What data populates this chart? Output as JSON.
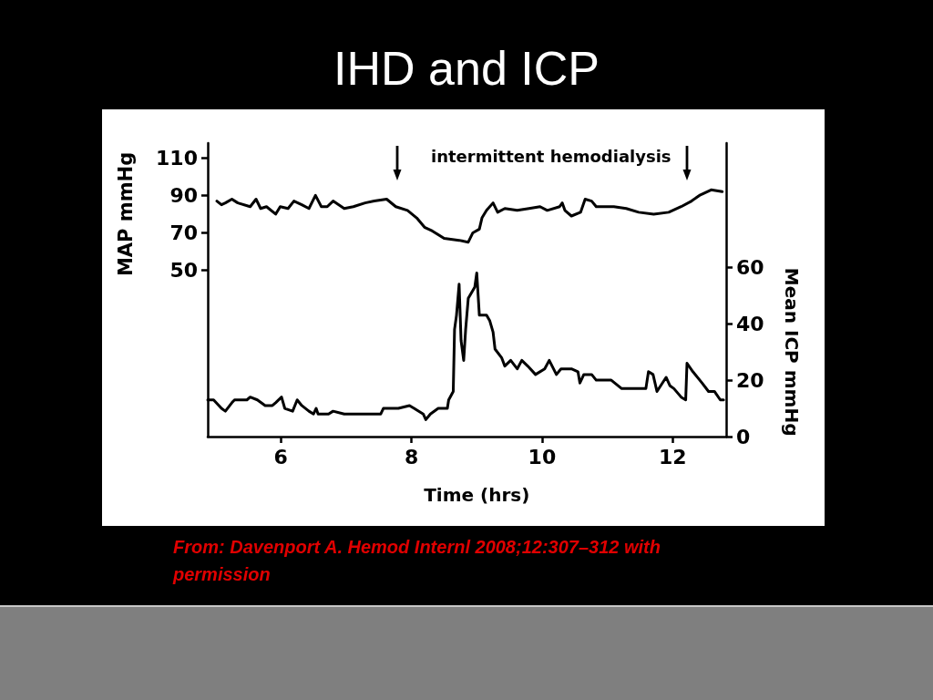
{
  "chart_data": {
    "type": "line",
    "title": "IHD and ICP",
    "xlabel": "Time (hrs)",
    "ylabel": "MAP mmHg",
    "y2label": "Mean ICP mmHg",
    "xlim": [
      4.88,
      12.82
    ],
    "xticks": [
      6,
      8,
      10,
      12
    ],
    "ylim": [
      -39,
      118
    ],
    "yticks": [
      50,
      70,
      90,
      110
    ],
    "y2lim": [
      0,
      104
    ],
    "y2ticks": [
      0,
      20,
      40,
      60
    ],
    "series": [
      {
        "color": "#000000",
        "x": [
          5.02,
          5.09,
          5.15,
          5.25,
          5.34,
          5.53,
          5.62,
          5.69,
          5.78,
          5.92,
          5.99,
          6.11,
          6.2,
          6.32,
          6.43,
          6.53,
          6.62,
          6.71,
          6.8,
          6.97,
          7.11,
          7.29,
          7.43,
          7.62,
          7.76,
          7.94,
          8.08,
          8.2,
          8.32,
          8.5,
          8.73,
          8.87,
          8.94,
          9.04,
          9.08,
          9.15,
          9.25,
          9.32,
          9.43,
          9.62,
          9.8,
          9.97,
          10.08,
          10.27,
          10.31,
          10.35,
          10.45,
          10.59,
          10.66,
          10.76,
          10.83,
          10.97,
          11.1,
          11.29,
          11.48,
          11.71,
          11.94,
          12.13,
          12.29,
          12.41,
          12.59,
          12.76
        ],
        "values": [
          87,
          85,
          86,
          88,
          86,
          84,
          88,
          83,
          84,
          80,
          84,
          83,
          87,
          85,
          83,
          90,
          84,
          84,
          87,
          83,
          84,
          86,
          87,
          88,
          84,
          82,
          78,
          73,
          71,
          67,
          66,
          65,
          70,
          72,
          78,
          82,
          86,
          81,
          83,
          82,
          83,
          84,
          82,
          84,
          86,
          82,
          79,
          81,
          88,
          87,
          84,
          84,
          84,
          83,
          81,
          80,
          81,
          84,
          87,
          90,
          93,
          92
        ]
      },
      {
        "color": "#000000",
        "axis": "y2",
        "x": [
          4.88,
          4.97,
          5.09,
          5.15,
          5.25,
          5.29,
          5.48,
          5.53,
          5.64,
          5.76,
          5.87,
          5.92,
          6.01,
          6.06,
          6.18,
          6.25,
          6.32,
          6.43,
          6.5,
          6.54,
          6.57,
          6.73,
          6.8,
          6.97,
          7.2,
          7.53,
          7.57,
          7.8,
          7.97,
          8.04,
          8.18,
          8.22,
          8.29,
          8.41,
          8.55,
          8.57,
          8.64,
          8.66,
          8.69,
          8.73,
          8.76,
          8.8,
          8.83,
          8.87,
          8.97,
          9.0,
          9.04,
          9.15,
          9.2,
          9.25,
          9.28,
          9.38,
          9.43,
          9.52,
          9.62,
          9.69,
          9.78,
          9.9,
          10.04,
          10.11,
          10.22,
          10.29,
          10.45,
          10.55,
          10.58,
          10.64,
          10.76,
          10.83,
          11.06,
          11.22,
          11.38,
          11.59,
          11.63,
          11.7,
          11.76,
          11.9,
          11.96,
          12.02,
          12.13,
          12.2,
          12.22,
          12.31,
          12.45,
          12.55,
          12.64,
          12.73,
          12.78
        ],
        "values": [
          13,
          13,
          10,
          9,
          12,
          13,
          13,
          14,
          13,
          11,
          11,
          12,
          14,
          10,
          9,
          13,
          11,
          9,
          8,
          10,
          8,
          8,
          9,
          8,
          8,
          8,
          10,
          10,
          11,
          10,
          8,
          6,
          8,
          10,
          10,
          13,
          16,
          38,
          43,
          54,
          34,
          27,
          38,
          49,
          53,
          58,
          43,
          43,
          41,
          37,
          31,
          28,
          25,
          27,
          24,
          27,
          25,
          22,
          24,
          27,
          22,
          24,
          24,
          23,
          19,
          22,
          22,
          20,
          20,
          17,
          17,
          17,
          23,
          22,
          16,
          21,
          18,
          17,
          14,
          13,
          26,
          23,
          19,
          16,
          16,
          13,
          13
        ]
      }
    ],
    "annotations": [
      "intermittent hemodialysis",
      "From: Davenport A. Hemod Internl 2008;12:307–312 with permission"
    ],
    "marker": "none",
    "line_style": "solid"
  }
}
